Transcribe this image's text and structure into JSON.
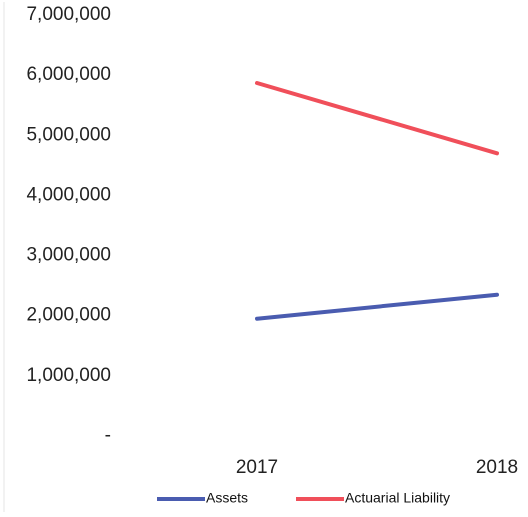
{
  "chart_data": {
    "type": "line",
    "title": "",
    "xlabel": "",
    "ylabel": "",
    "categories": [
      "2017",
      "2018"
    ],
    "ylim": [
      0,
      7000000
    ],
    "y_ticks": [
      0,
      1000000,
      2000000,
      3000000,
      4000000,
      5000000,
      6000000,
      7000000
    ],
    "y_tick_labels": [
      "-",
      "1,000,000",
      "2,000,000",
      "3,000,000",
      "4,000,000",
      "5,000,000",
      "6,000,000",
      "7,000,000"
    ],
    "grid": false,
    "legend_position": "bottom",
    "series": [
      {
        "name": "Assets",
        "values": [
          1950000,
          2350000
        ],
        "color": "#4a5cb0"
      },
      {
        "name": "Actuarial Liability",
        "values": [
          5870000,
          4700000
        ],
        "color": "#f04f5a"
      }
    ]
  }
}
